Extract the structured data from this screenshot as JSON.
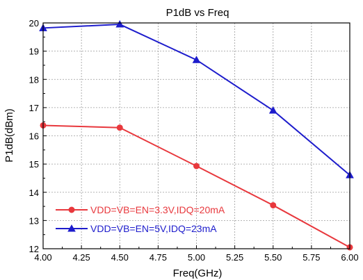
{
  "chart_data": {
    "type": "line",
    "title": "P1dB vs Freq",
    "xlabel": "Freq(GHz)",
    "ylabel": "P1dB(dBm)",
    "xlim": [
      4.0,
      6.0
    ],
    "ylim": [
      12,
      20
    ],
    "x_ticks": [
      "4.00",
      "4.25",
      "4.50",
      "4.75",
      "5.00",
      "5.25",
      "5.50",
      "5.75",
      "6.00"
    ],
    "y_ticks": [
      "12",
      "13",
      "14",
      "15",
      "16",
      "17",
      "18",
      "19",
      "20"
    ],
    "grid": true,
    "legend_position": "bottom-left",
    "series": [
      {
        "name": "VDD=VB=EN=3.3V,IDQ=20mA",
        "color": "#e8383d",
        "marker": "circle",
        "x": [
          4.0,
          4.5,
          5.0,
          5.5,
          6.0
        ],
        "y": [
          16.37,
          16.29,
          14.93,
          13.54,
          12.05
        ]
      },
      {
        "name": "VDD=VB=EN=5V,IDQ=23mA",
        "color": "#1d1ccc",
        "marker": "triangle",
        "x": [
          4.0,
          4.5,
          5.0,
          5.5,
          6.0
        ],
        "y": [
          19.82,
          19.95,
          18.69,
          16.9,
          14.61
        ]
      }
    ]
  }
}
